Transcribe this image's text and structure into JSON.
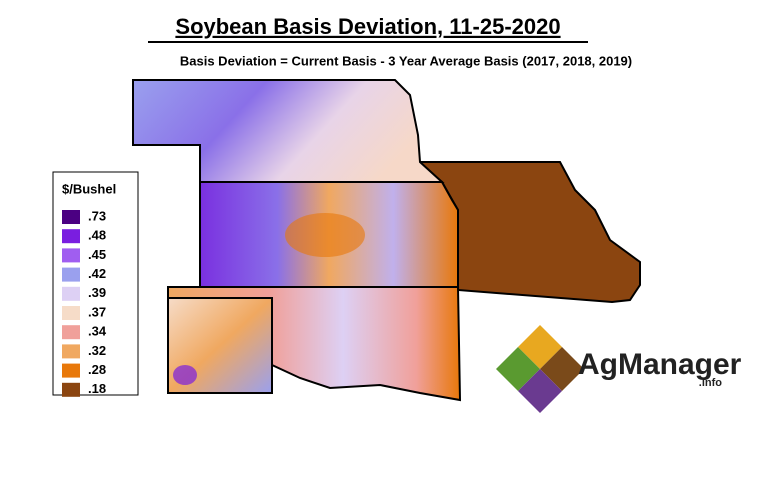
{
  "header": {
    "title": "Soybean Basis Deviation, 11-25-2020",
    "subtitle": "Basis Deviation = Current Basis - 3 Year Average Basis (2017, 2018, 2019)"
  },
  "legend": {
    "title": "$/Bushel",
    "items": [
      {
        "label": ".73",
        "color": "#4b0082"
      },
      {
        "label": ".48",
        "color": "#7a1ee0"
      },
      {
        "label": ".45",
        "color": "#a05ef0"
      },
      {
        "label": ".42",
        "color": "#9aa0ee"
      },
      {
        "label": ".39",
        "color": "#ddd0f4"
      },
      {
        "label": ".37",
        "color": "#f6dcc8"
      },
      {
        "label": ".34",
        "color": "#f0a09a"
      },
      {
        "label": ".32",
        "color": "#f0a860"
      },
      {
        "label": ".28",
        "color": "#e8780a"
      },
      {
        "label": ".18",
        "color": "#8b4510"
      }
    ]
  },
  "logo": {
    "name": "AgManager",
    "suffix": ".info"
  }
}
